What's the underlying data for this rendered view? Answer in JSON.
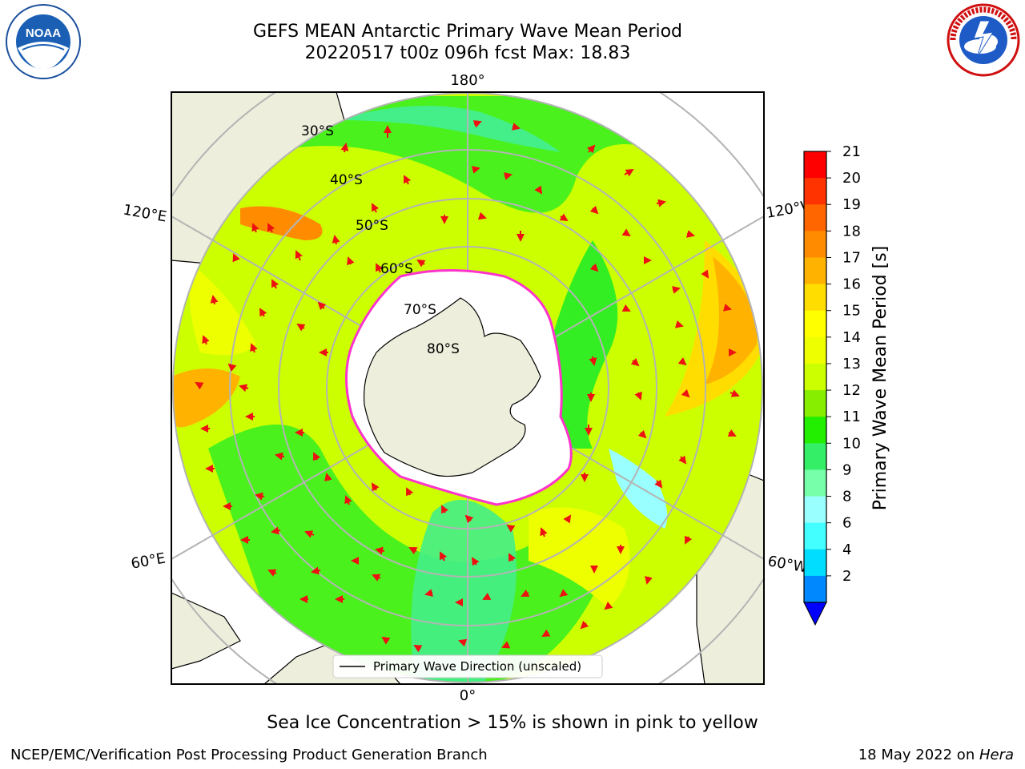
{
  "title": {
    "line1": "GEFS MEAN Antarctic Primary Wave Mean Period",
    "line2": "20220517 t00z 096h fcst   Max: 18.83"
  },
  "map": {
    "longitude_labels": {
      "top": "180°",
      "bottom": "0°",
      "upper_left": "120°E",
      "upper_right": "120°W",
      "lower_left": "60°E",
      "lower_right": "60°W"
    },
    "latitude_labels": [
      "30°S",
      "40°S",
      "50°S",
      "60°S",
      "70°S",
      "80°S"
    ],
    "legend_label": "Primary Wave Direction (unscaled)",
    "colors": {
      "land": "#eeeedc",
      "ice": "#ffffff",
      "ice_edge": "#ff33cc",
      "arrow": "#ee1111"
    }
  },
  "colorbar": {
    "label": "Primary Wave Mean Period [s]",
    "ticks": [
      "21",
      "20",
      "19",
      "18",
      "17",
      "16",
      "15",
      "14",
      "13",
      "12",
      "11",
      "10",
      "9",
      "8",
      "6",
      "4",
      "2"
    ],
    "colors_top_to_bottom": [
      "#ff0000",
      "#ff3300",
      "#ff6600",
      "#ff8c00",
      "#ffb300",
      "#ffdd00",
      "#ffff00",
      "#eeff00",
      "#ccff00",
      "#88ee00",
      "#22ee00",
      "#33ee66",
      "#77ffaa",
      "#99ffff",
      "#44ffff",
      "#00ddff",
      "#0088ff"
    ],
    "extend_color": "#0000ff"
  },
  "caption": "Sea Ice Concentration > 15% is shown in pink to yellow",
  "footer": {
    "left": "NCEP/EMC/Verification Post Processing Product Generation Branch",
    "right_prefix": "18 May 2022 on ",
    "right_italic": "Hera"
  },
  "logos": {
    "noaa": "NOAA",
    "nws": "NATIONAL WEATHER SERVICE"
  }
}
